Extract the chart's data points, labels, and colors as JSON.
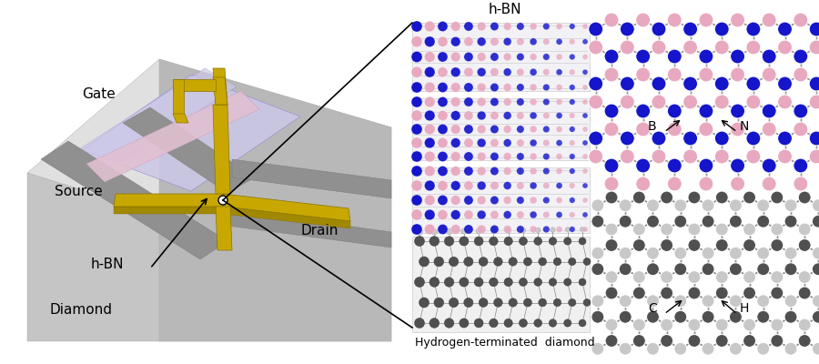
{
  "background_color": "#ffffff",
  "label_gate": "Gate",
  "label_source": "Source",
  "label_drain": "Drain",
  "label_hbn": "h-BN",
  "label_diamond": "Diamond",
  "label_hbn_top": "h-BN",
  "label_htd": "Hydrogen-terminated  diamond",
  "label_B": "B",
  "label_N": "N",
  "label_C": "C",
  "label_H": "H",
  "color_gold": "#c8a800",
  "color_gold_dark": "#8a7200",
  "color_diamond_top": "#e2e2e2",
  "color_diamond_front": "#c8c8c8",
  "color_diamond_side": "#b5b5b5",
  "color_gate_dielectric": "#ccc8e8",
  "color_gate_dielectric_edge": "#9988cc",
  "color_hbn_pink": "#e8b8cc",
  "color_hbn_strip": "#ddc8d8",
  "color_source_drain": "#989898",
  "color_N_atom": "#1515cc",
  "color_B_atom": "#e8a8c0",
  "color_C_atom": "#505050",
  "color_H_atom": "#c8c8c8",
  "color_bond": "#888888",
  "color_text": "#000000",
  "fontsize_label": 11,
  "fontsize_small": 9
}
